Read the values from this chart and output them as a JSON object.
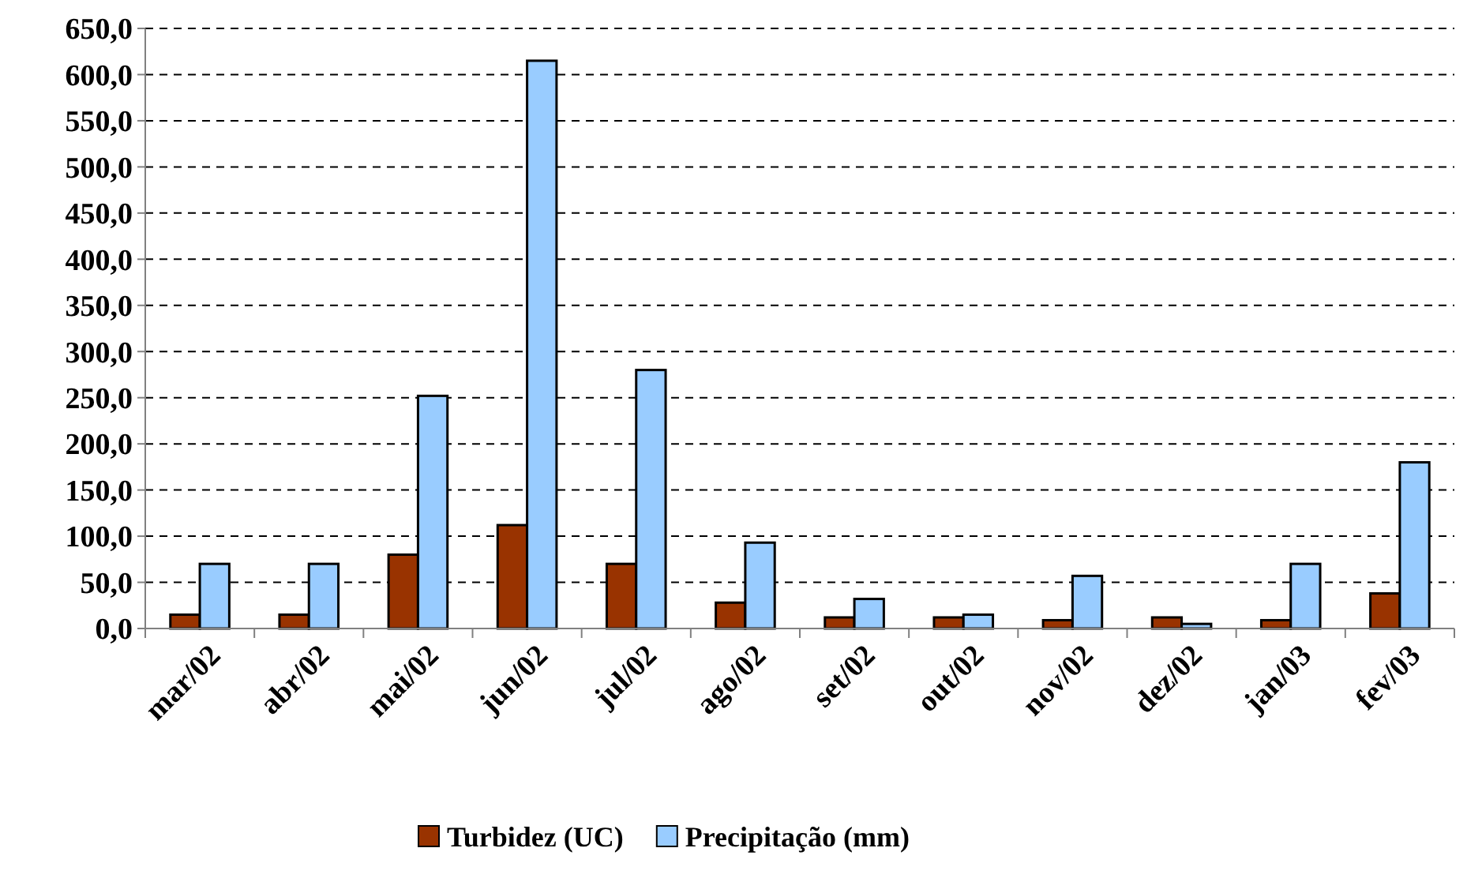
{
  "chart_data": {
    "type": "bar",
    "categories": [
      "mar/02",
      "abr/02",
      "mai/02",
      "jun/02",
      "jul/02",
      "ago/02",
      "set/02",
      "out/02",
      "nov/02",
      "dez/02",
      "jan/03",
      "fev/03"
    ],
    "series": [
      {
        "name": "Turbidez (UC)",
        "color": "#993300",
        "values": [
          15,
          15,
          80,
          112,
          70,
          28,
          12,
          12,
          9,
          12,
          9,
          38
        ]
      },
      {
        "name": "Precipitação (mm)",
        "color": "#99ccff",
        "values": [
          70,
          70,
          252,
          615,
          280,
          93,
          32,
          15,
          57,
          5,
          70,
          180
        ]
      }
    ],
    "ylim": [
      0,
      650
    ],
    "yticks": [
      {
        "value": 0,
        "label": "0,0"
      },
      {
        "value": 50,
        "label": "50,0"
      },
      {
        "value": 100,
        "label": "100,0"
      },
      {
        "value": 150,
        "label": "150,0"
      },
      {
        "value": 200,
        "label": "200,0"
      },
      {
        "value": 250,
        "label": "250,0"
      },
      {
        "value": 300,
        "label": "300,0"
      },
      {
        "value": 350,
        "label": "350,0"
      },
      {
        "value": 400,
        "label": "400,0"
      },
      {
        "value": 450,
        "label": "450,0"
      },
      {
        "value": 500,
        "label": "500,0"
      },
      {
        "value": 550,
        "label": "550,0"
      },
      {
        "value": 600,
        "label": "600,0"
      },
      {
        "value": 650,
        "label": "650,0"
      }
    ],
    "grid": "y",
    "legend": "bottom"
  }
}
